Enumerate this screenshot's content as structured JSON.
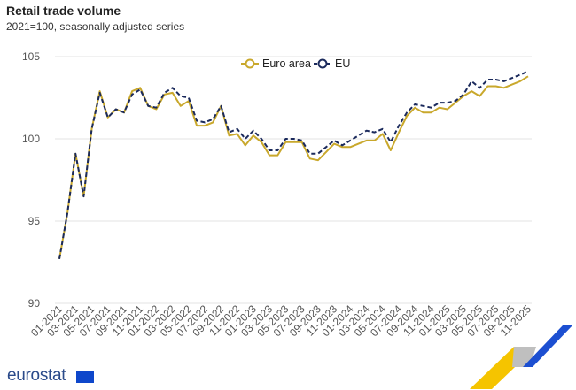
{
  "chart_data": {
    "type": "line",
    "title": "Retail trade volume",
    "subtitle": "2021=100, seasonally adjusted series",
    "xlabel": "",
    "ylabel": "",
    "ylim": [
      90,
      105
    ],
    "yticks": [
      90,
      95,
      100,
      105
    ],
    "grid": true,
    "legend_position": "top-center",
    "x_start": "01-2021",
    "x_end": "11-2025",
    "xtick_labels": [
      "01-2021",
      "03-2021",
      "05-2021",
      "07-2021",
      "09-2021",
      "11-2021",
      "01-2022",
      "03-2022",
      "05-2022",
      "07-2022",
      "09-2022",
      "11-2022",
      "01-2023",
      "03-2023",
      "05-2023",
      "07-2023",
      "09-2023",
      "11-2023",
      "01-2024",
      "03-2024",
      "05-2024",
      "07-2024",
      "09-2024",
      "11-2024",
      "01-2025",
      "03-2025",
      "05-2025",
      "07-2025",
      "09-2025",
      "11-2025"
    ],
    "series": [
      {
        "name": "Euro area",
        "color": "#c9a82c",
        "style": "solid",
        "values": [
          92.7,
          95.5,
          99.1,
          96.5,
          100.6,
          102.9,
          101.3,
          101.8,
          101.6,
          102.9,
          103.1,
          102.0,
          101.8,
          102.7,
          102.8,
          102.0,
          102.3,
          100.8,
          100.8,
          101.0,
          102.0,
          100.2,
          100.3,
          99.6,
          100.2,
          99.8,
          99.0,
          99.0,
          99.8,
          99.8,
          99.8,
          98.8,
          98.7,
          99.2,
          99.7,
          99.5,
          99.5,
          99.7,
          99.9,
          99.9,
          100.3,
          99.3,
          100.4,
          101.4,
          101.9,
          101.6,
          101.6,
          101.9,
          101.8,
          102.2,
          102.6,
          102.9,
          102.6,
          103.2,
          103.2,
          103.1,
          103.3,
          103.5,
          103.8
        ]
      },
      {
        "name": "EU",
        "color": "#1b2a5c",
        "style": "dashed",
        "values": [
          92.7,
          95.5,
          99.1,
          96.5,
          100.6,
          102.8,
          101.3,
          101.8,
          101.6,
          102.7,
          103.0,
          102.0,
          101.9,
          102.8,
          103.1,
          102.6,
          102.5,
          101.1,
          101.0,
          101.2,
          102.0,
          100.4,
          100.6,
          100.0,
          100.5,
          100.0,
          99.3,
          99.3,
          100.0,
          100.0,
          99.9,
          99.1,
          99.1,
          99.5,
          99.9,
          99.6,
          99.9,
          100.2,
          100.5,
          100.4,
          100.6,
          99.8,
          100.8,
          101.6,
          102.1,
          102.0,
          101.9,
          102.2,
          102.2,
          102.3,
          102.7,
          103.5,
          103.1,
          103.6,
          103.6,
          103.5,
          103.7,
          103.9,
          104.1
        ]
      }
    ]
  },
  "branding": {
    "logo_text": "eurostat"
  }
}
